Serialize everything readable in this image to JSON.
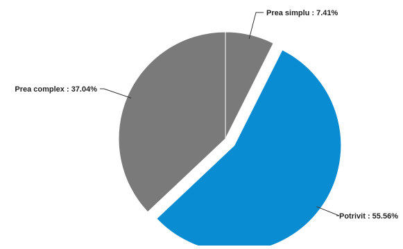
{
  "chart_data": {
    "type": "pie",
    "title": "",
    "slices": [
      {
        "label": "Prea simplu",
        "value": 7.41,
        "display": "Prea simplu : 7.41%",
        "color": "#7a7a7a",
        "exploded": false
      },
      {
        "label": "Potrivit",
        "value": 55.56,
        "display": "Potrivit : 55.56%",
        "color": "#0a8cd2",
        "exploded": true
      },
      {
        "label": "Prea complex",
        "value": 37.04,
        "display": "Prea complex : 37.04%",
        "color": "#7a7a7a",
        "exploded": false
      }
    ]
  }
}
